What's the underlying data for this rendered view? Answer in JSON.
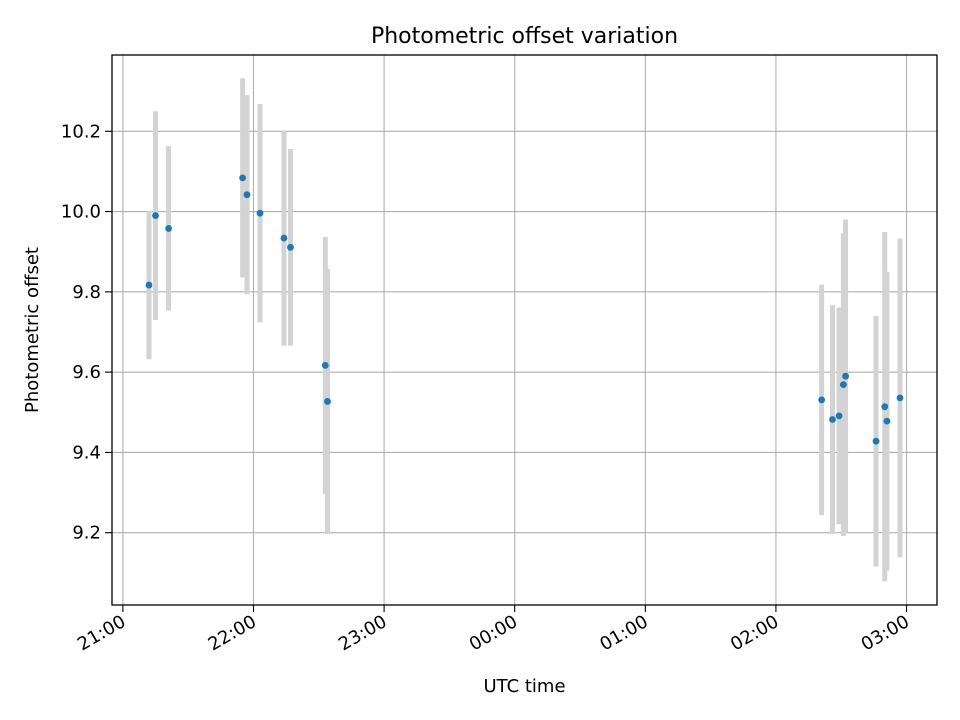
{
  "chart_data": {
    "type": "scatter",
    "title": "Photometric offset variation",
    "xlabel": "UTC time",
    "ylabel": "Photometric offset",
    "x_ticks": [
      "21:00",
      "22:00",
      "23:00",
      "00:00",
      "01:00",
      "02:00",
      "03:00"
    ],
    "y_ticks": [
      "9.2",
      "9.4",
      "9.6",
      "9.8",
      "10.0",
      "10.2"
    ],
    "xlim": [
      "20:55",
      "03:14"
    ],
    "ylim": [
      9.02,
      10.39
    ],
    "grid": true,
    "colors": {
      "point": "#1f77b4",
      "errorbar": "#d3d3d3",
      "grid": "#b0b0b0"
    },
    "points": [
      {
        "t": "21:12",
        "y": 9.817,
        "err": 0.185
      },
      {
        "t": "21:15",
        "y": 9.99,
        "err": 0.26
      },
      {
        "t": "21:21",
        "y": 9.958,
        "err": 0.205
      },
      {
        "t": "21:55",
        "y": 10.084,
        "err": 0.248
      },
      {
        "t": "21:57",
        "y": 10.042,
        "err": 0.248
      },
      {
        "t": "22:03",
        "y": 9.996,
        "err": 0.272
      },
      {
        "t": "22:14",
        "y": 9.934,
        "err": 0.268
      },
      {
        "t": "22:17",
        "y": 9.911,
        "err": 0.245
      },
      {
        "t": "22:33",
        "y": 9.617,
        "err": 0.32
      },
      {
        "t": "22:34",
        "y": 9.527,
        "err": 0.33
      },
      {
        "t": "02:21",
        "y": 9.531,
        "err": 0.287
      },
      {
        "t": "02:26",
        "y": 9.482,
        "err": 0.285
      },
      {
        "t": "02:29",
        "y": 9.491,
        "err": 0.27
      },
      {
        "t": "02:31",
        "y": 9.569,
        "err": 0.377
      },
      {
        "t": "02:32",
        "y": 9.59,
        "err": 0.39
      },
      {
        "t": "02:46",
        "y": 9.428,
        "err": 0.312
      },
      {
        "t": "02:50",
        "y": 9.514,
        "err": 0.435
      },
      {
        "t": "02:51",
        "y": 9.478,
        "err": 0.372
      },
      {
        "t": "02:57",
        "y": 9.536,
        "err": 0.397
      }
    ]
  }
}
